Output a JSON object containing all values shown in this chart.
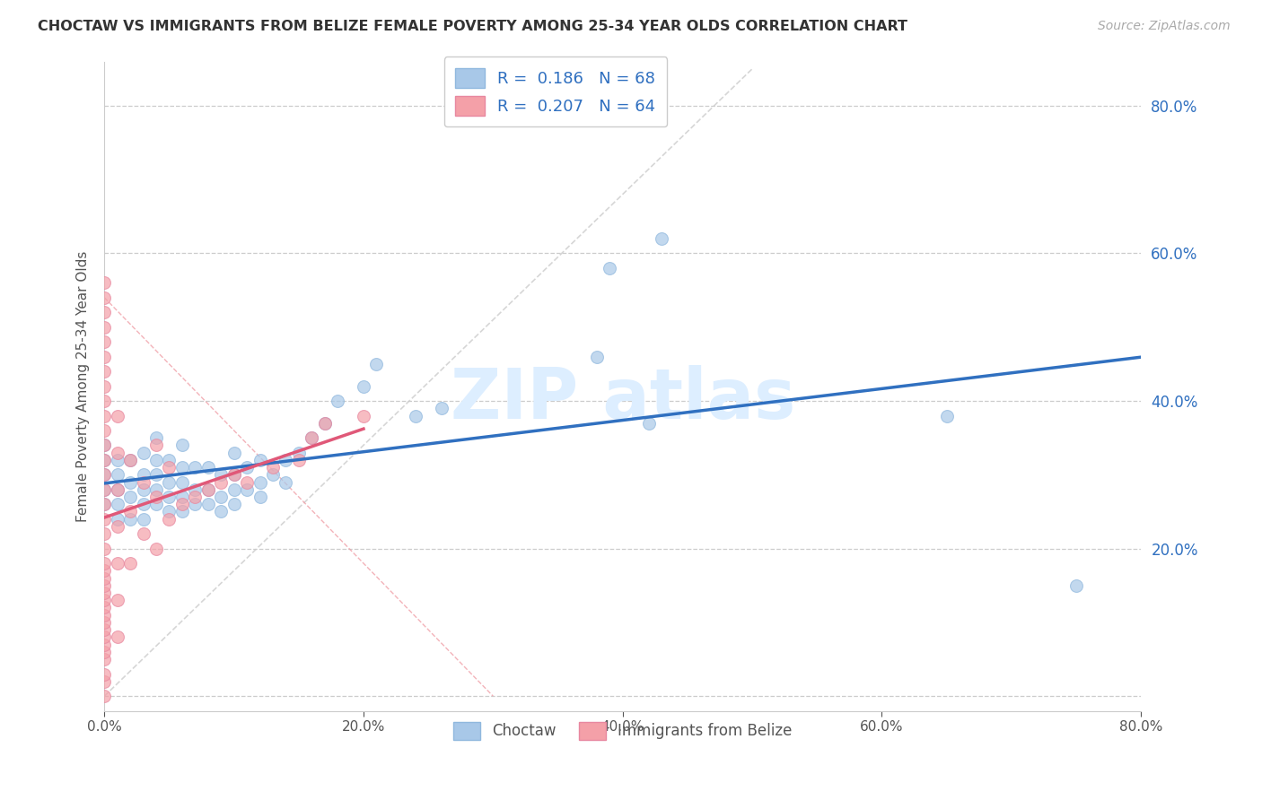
{
  "title": "CHOCTAW VS IMMIGRANTS FROM BELIZE FEMALE POVERTY AMONG 25-34 YEAR OLDS CORRELATION CHART",
  "source": "Source: ZipAtlas.com",
  "ylabel": "Female Poverty Among 25-34 Year Olds",
  "xlim": [
    0.0,
    0.8
  ],
  "ylim": [
    -0.02,
    0.86
  ],
  "xticks": [
    0.0,
    0.2,
    0.4,
    0.6,
    0.8
  ],
  "xticklabels": [
    "0.0%",
    "20.0%",
    "40.0%",
    "60.0%",
    "80.0%"
  ],
  "yticks": [
    0.0,
    0.2,
    0.4,
    0.6,
    0.8
  ],
  "yticklabels_left": [
    "",
    "",
    "",
    "",
    ""
  ],
  "yticklabels_right": [
    "",
    "20.0%",
    "40.0%",
    "60.0%",
    "80.0%"
  ],
  "legend_label1": "R =  0.186   N = 68",
  "legend_label2": "R =  0.207   N = 64",
  "choctaw_color": "#a8c8e8",
  "belize_color": "#f4a0a8",
  "trend1_color": "#3070c0",
  "trend2_color": "#e05878",
  "ref_line_color": "#cccccc",
  "ref_line2_color": "#f0a0a0",
  "background": "#ffffff",
  "grid_color": "#cccccc",
  "choctaw_x": [
    0.0,
    0.0,
    0.0,
    0.0,
    0.0,
    0.01,
    0.01,
    0.01,
    0.01,
    0.01,
    0.02,
    0.02,
    0.02,
    0.02,
    0.03,
    0.03,
    0.03,
    0.03,
    0.03,
    0.04,
    0.04,
    0.04,
    0.04,
    0.04,
    0.05,
    0.05,
    0.05,
    0.05,
    0.06,
    0.06,
    0.06,
    0.06,
    0.06,
    0.07,
    0.07,
    0.07,
    0.08,
    0.08,
    0.08,
    0.09,
    0.09,
    0.09,
    0.1,
    0.1,
    0.1,
    0.1,
    0.11,
    0.11,
    0.12,
    0.12,
    0.12,
    0.13,
    0.14,
    0.14,
    0.15,
    0.16,
    0.17,
    0.18,
    0.2,
    0.21,
    0.24,
    0.26,
    0.38,
    0.39,
    0.42,
    0.43,
    0.65,
    0.75
  ],
  "choctaw_y": [
    0.26,
    0.28,
    0.3,
    0.32,
    0.34,
    0.24,
    0.26,
    0.28,
    0.3,
    0.32,
    0.24,
    0.27,
    0.29,
    0.32,
    0.24,
    0.26,
    0.28,
    0.3,
    0.33,
    0.26,
    0.28,
    0.3,
    0.32,
    0.35,
    0.25,
    0.27,
    0.29,
    0.32,
    0.25,
    0.27,
    0.29,
    0.31,
    0.34,
    0.26,
    0.28,
    0.31,
    0.26,
    0.28,
    0.31,
    0.25,
    0.27,
    0.3,
    0.26,
    0.28,
    0.3,
    0.33,
    0.28,
    0.31,
    0.27,
    0.29,
    0.32,
    0.3,
    0.29,
    0.32,
    0.33,
    0.35,
    0.37,
    0.4,
    0.42,
    0.45,
    0.38,
    0.39,
    0.46,
    0.58,
    0.37,
    0.62,
    0.38,
    0.15
  ],
  "belize_x": [
    0.0,
    0.0,
    0.0,
    0.0,
    0.0,
    0.0,
    0.0,
    0.0,
    0.0,
    0.0,
    0.0,
    0.0,
    0.0,
    0.0,
    0.0,
    0.0,
    0.0,
    0.0,
    0.0,
    0.0,
    0.0,
    0.0,
    0.0,
    0.0,
    0.0,
    0.0,
    0.0,
    0.0,
    0.0,
    0.0,
    0.0,
    0.0,
    0.0,
    0.0,
    0.0,
    0.0,
    0.01,
    0.01,
    0.01,
    0.01,
    0.01,
    0.01,
    0.01,
    0.02,
    0.02,
    0.02,
    0.03,
    0.03,
    0.04,
    0.04,
    0.04,
    0.05,
    0.05,
    0.06,
    0.07,
    0.08,
    0.09,
    0.1,
    0.11,
    0.13,
    0.15,
    0.16,
    0.17,
    0.2
  ],
  "belize_y": [
    0.0,
    0.02,
    0.03,
    0.05,
    0.06,
    0.07,
    0.08,
    0.09,
    0.1,
    0.11,
    0.12,
    0.13,
    0.14,
    0.15,
    0.16,
    0.17,
    0.18,
    0.2,
    0.22,
    0.24,
    0.26,
    0.28,
    0.3,
    0.32,
    0.34,
    0.36,
    0.38,
    0.4,
    0.42,
    0.44,
    0.46,
    0.48,
    0.5,
    0.52,
    0.54,
    0.56,
    0.08,
    0.13,
    0.18,
    0.23,
    0.28,
    0.33,
    0.38,
    0.18,
    0.25,
    0.32,
    0.22,
    0.29,
    0.2,
    0.27,
    0.34,
    0.24,
    0.31,
    0.26,
    0.27,
    0.28,
    0.29,
    0.3,
    0.29,
    0.31,
    0.32,
    0.35,
    0.37,
    0.38
  ]
}
